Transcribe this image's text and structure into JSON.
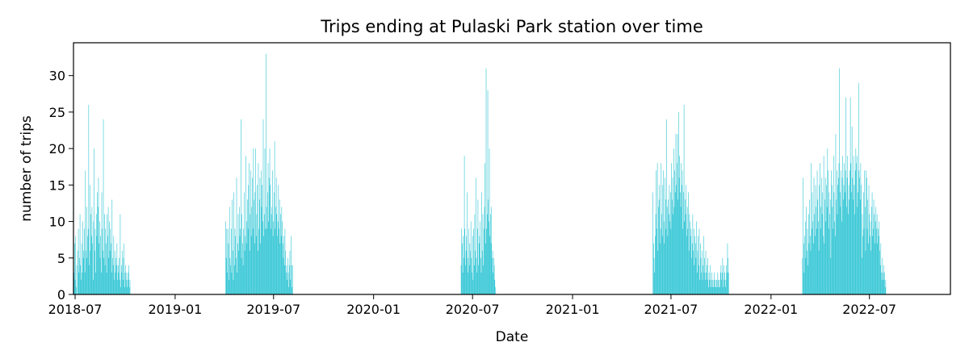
{
  "chart_data": {
    "type": "bar",
    "title": "Trips ending at Pulaski Park station over time",
    "xlabel": "Date",
    "ylabel": "number of trips",
    "x_ticks": [
      "2018-07",
      "2019-01",
      "2019-07",
      "2020-01",
      "2020-07",
      "2021-01",
      "2021-07",
      "2022-01",
      "2022-07"
    ],
    "y_ticks": [
      0,
      5,
      10,
      15,
      20,
      25,
      30
    ],
    "xlim": [
      "2018-06-28",
      "2022-11-27"
    ],
    "ylim": [
      0,
      34.5
    ],
    "grid": false,
    "bar_color": "#17becf",
    "segments": [
      {
        "start": "2018-06-29",
        "values": [
          3,
          7,
          2,
          8,
          1,
          4,
          0,
          6,
          9,
          3,
          5,
          11,
          4,
          2,
          7,
          3,
          10,
          5,
          6,
          9,
          3,
          17,
          6,
          12,
          5,
          8,
          9,
          26,
          4,
          15,
          6,
          11,
          8,
          12,
          7,
          2,
          10,
          20,
          6,
          9,
          3,
          11,
          8,
          14,
          12,
          16,
          7,
          10,
          5,
          8,
          3,
          14,
          9,
          6,
          24,
          5,
          11,
          4,
          9,
          7,
          3,
          11,
          8,
          12,
          5,
          10,
          6,
          9,
          7,
          3,
          13,
          5,
          4,
          8,
          2,
          6,
          3,
          5,
          4,
          7,
          2,
          4,
          3,
          5,
          2,
          11,
          1,
          4,
          3,
          6,
          2,
          5,
          7,
          1,
          3,
          4,
          2,
          3,
          1,
          2,
          3,
          4,
          1,
          2
        ]
      },
      {
        "start": "2019-04-04",
        "values": [
          10,
          5,
          9,
          3,
          9,
          7,
          2,
          12,
          5,
          4,
          9,
          3,
          13,
          6,
          2,
          14,
          4,
          9,
          8,
          5,
          16,
          3,
          7,
          11,
          6,
          12,
          8,
          9,
          24,
          5,
          11,
          7,
          4,
          9,
          14,
          6,
          8,
          19,
          7,
          10,
          13,
          9,
          15,
          18,
          6,
          11,
          17,
          8,
          12,
          16,
          9,
          20,
          13,
          7,
          14,
          20,
          8,
          11,
          15,
          6,
          18,
          9,
          13,
          16,
          7,
          17,
          12,
          15,
          10,
          24,
          8,
          11,
          20,
          9,
          33,
          12,
          9,
          14,
          18,
          10,
          16,
          20,
          15,
          9,
          11,
          12,
          17,
          8,
          10,
          14,
          21,
          9,
          12,
          16,
          11,
          8,
          10,
          15,
          9,
          13,
          7,
          11,
          8,
          12,
          10,
          7,
          5,
          8,
          4,
          9,
          6,
          3,
          4,
          2,
          5,
          3,
          1,
          4,
          6,
          2,
          8,
          4,
          1,
          4
        ]
      },
      {
        "start": "2020-06-10",
        "values": [
          4,
          9,
          7,
          3,
          8,
          5,
          19,
          9,
          4,
          6,
          8,
          14,
          5,
          3,
          9,
          4,
          7,
          6,
          10,
          5,
          3,
          8,
          2,
          9,
          4,
          11,
          6,
          16,
          5,
          3,
          9,
          13,
          4,
          7,
          8,
          10,
          5,
          3,
          14,
          6,
          11,
          4,
          9,
          12,
          18,
          7,
          31,
          9,
          11,
          28,
          13,
          10,
          20,
          8,
          11,
          7,
          12,
          5,
          6,
          3,
          5,
          4,
          2,
          1
        ]
      },
      {
        "start": "2021-05-29",
        "values": [
          14,
          7,
          5,
          3,
          8,
          11,
          17,
          9,
          18,
          6,
          12,
          13,
          15,
          7,
          9,
          18,
          11,
          8,
          15,
          17,
          10,
          7,
          16,
          13,
          9,
          24,
          12,
          8,
          13,
          11,
          15,
          10,
          14,
          9,
          18,
          13,
          16,
          11,
          20,
          12,
          17,
          14,
          22,
          15,
          18,
          22,
          13,
          25,
          16,
          19,
          14,
          12,
          18,
          15,
          17,
          9,
          14,
          26,
          10,
          13,
          11,
          15,
          8,
          12,
          9,
          14,
          6,
          11,
          10,
          8,
          9,
          5,
          7,
          11,
          6,
          9,
          4,
          8,
          7,
          5,
          10,
          3,
          6,
          8,
          4,
          9,
          2,
          7,
          5,
          3,
          6,
          2,
          4,
          8,
          3,
          5,
          2,
          6,
          3,
          4,
          2,
          5,
          1,
          3,
          2,
          4,
          1,
          2,
          3,
          1,
          2,
          1,
          2,
          3,
          1,
          2,
          1,
          2,
          1,
          3,
          2,
          1,
          2,
          1,
          3,
          4,
          2,
          3,
          5,
          1,
          4,
          2,
          3,
          1,
          2,
          4,
          3,
          7,
          5,
          3
        ]
      },
      {
        "start": "2022-02-28",
        "values": [
          5,
          16,
          7,
          3,
          8,
          10,
          5,
          12,
          6,
          9,
          4,
          11,
          7,
          13,
          8,
          6,
          18,
          9,
          14,
          10,
          7,
          16,
          11,
          8,
          15,
          12,
          9,
          17,
          13,
          10,
          6,
          15,
          18,
          9,
          12,
          16,
          11,
          14,
          8,
          19,
          7,
          13,
          16,
          10,
          15,
          12,
          20,
          17,
          9,
          14,
          11,
          13,
          5,
          17,
          15,
          12,
          9,
          19,
          14,
          10,
          8,
          22,
          13,
          17,
          11,
          15,
          16,
          18,
          31,
          14,
          12,
          17,
          10,
          16,
          19,
          13,
          15,
          18,
          14,
          17,
          27,
          12,
          16,
          19,
          11,
          15,
          13,
          17,
          27,
          18,
          14,
          23,
          16,
          13,
          19,
          15,
          11,
          17,
          20,
          18,
          19,
          12,
          14,
          29,
          17,
          16,
          13,
          18,
          15,
          5,
          11,
          8,
          14,
          9,
          17,
          12,
          6,
          17,
          16,
          9,
          13,
          7,
          15,
          11,
          8,
          10,
          6,
          12,
          14,
          8,
          9,
          13,
          11,
          7,
          10,
          12,
          9,
          11,
          7,
          9,
          8,
          10,
          6,
          4,
          7,
          3,
          2,
          5,
          3,
          4,
          2,
          3,
          1,
          2
        ]
      }
    ]
  }
}
